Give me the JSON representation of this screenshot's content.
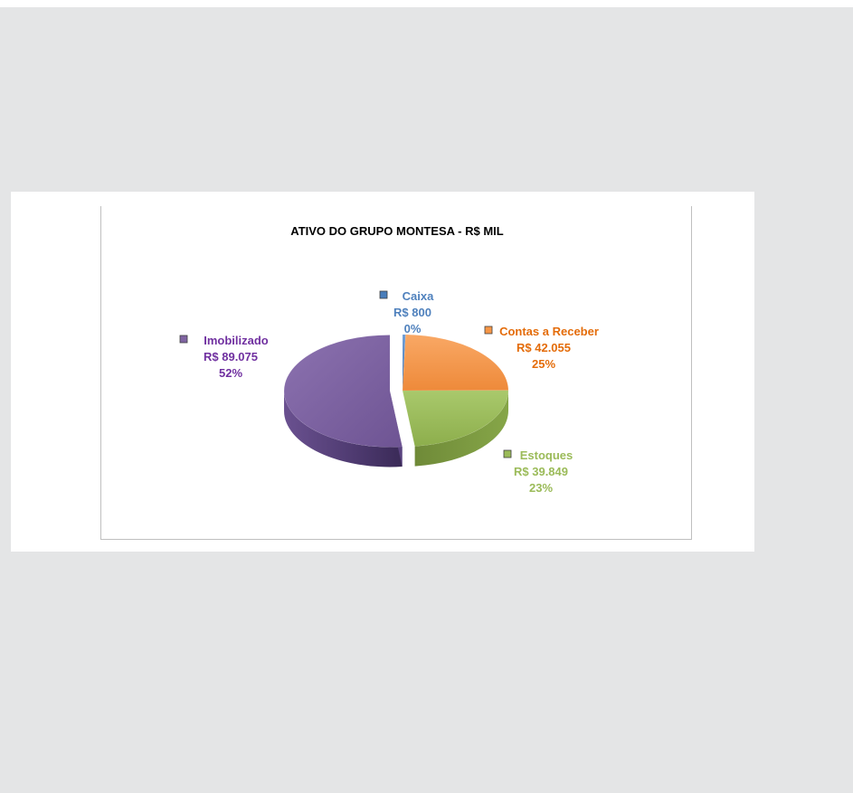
{
  "chart_data": {
    "type": "pie",
    "title": "ATIVO DO GRUPO MONTESA - R$ MIL",
    "categories": [
      "Caixa",
      "Contas a Receber",
      "Estoques",
      "Imobilizado"
    ],
    "values": [
      800,
      42055,
      39849,
      89075
    ],
    "value_labels": [
      "R$ 800",
      "R$ 42.055",
      "R$ 39.849",
      "R$ 89.075"
    ],
    "percent_labels": [
      "0%",
      "25%",
      "23%",
      "52%"
    ],
    "colors": [
      "#4a7ebb",
      "#f79646",
      "#9bbb59",
      "#8064a2"
    ],
    "label_colors": [
      "#4f81bd",
      "#e46c0a",
      "#9bbb59",
      "#7030a0"
    ],
    "exploded": [
      "Imobilizado"
    ],
    "style": "3d",
    "legend": "none"
  }
}
